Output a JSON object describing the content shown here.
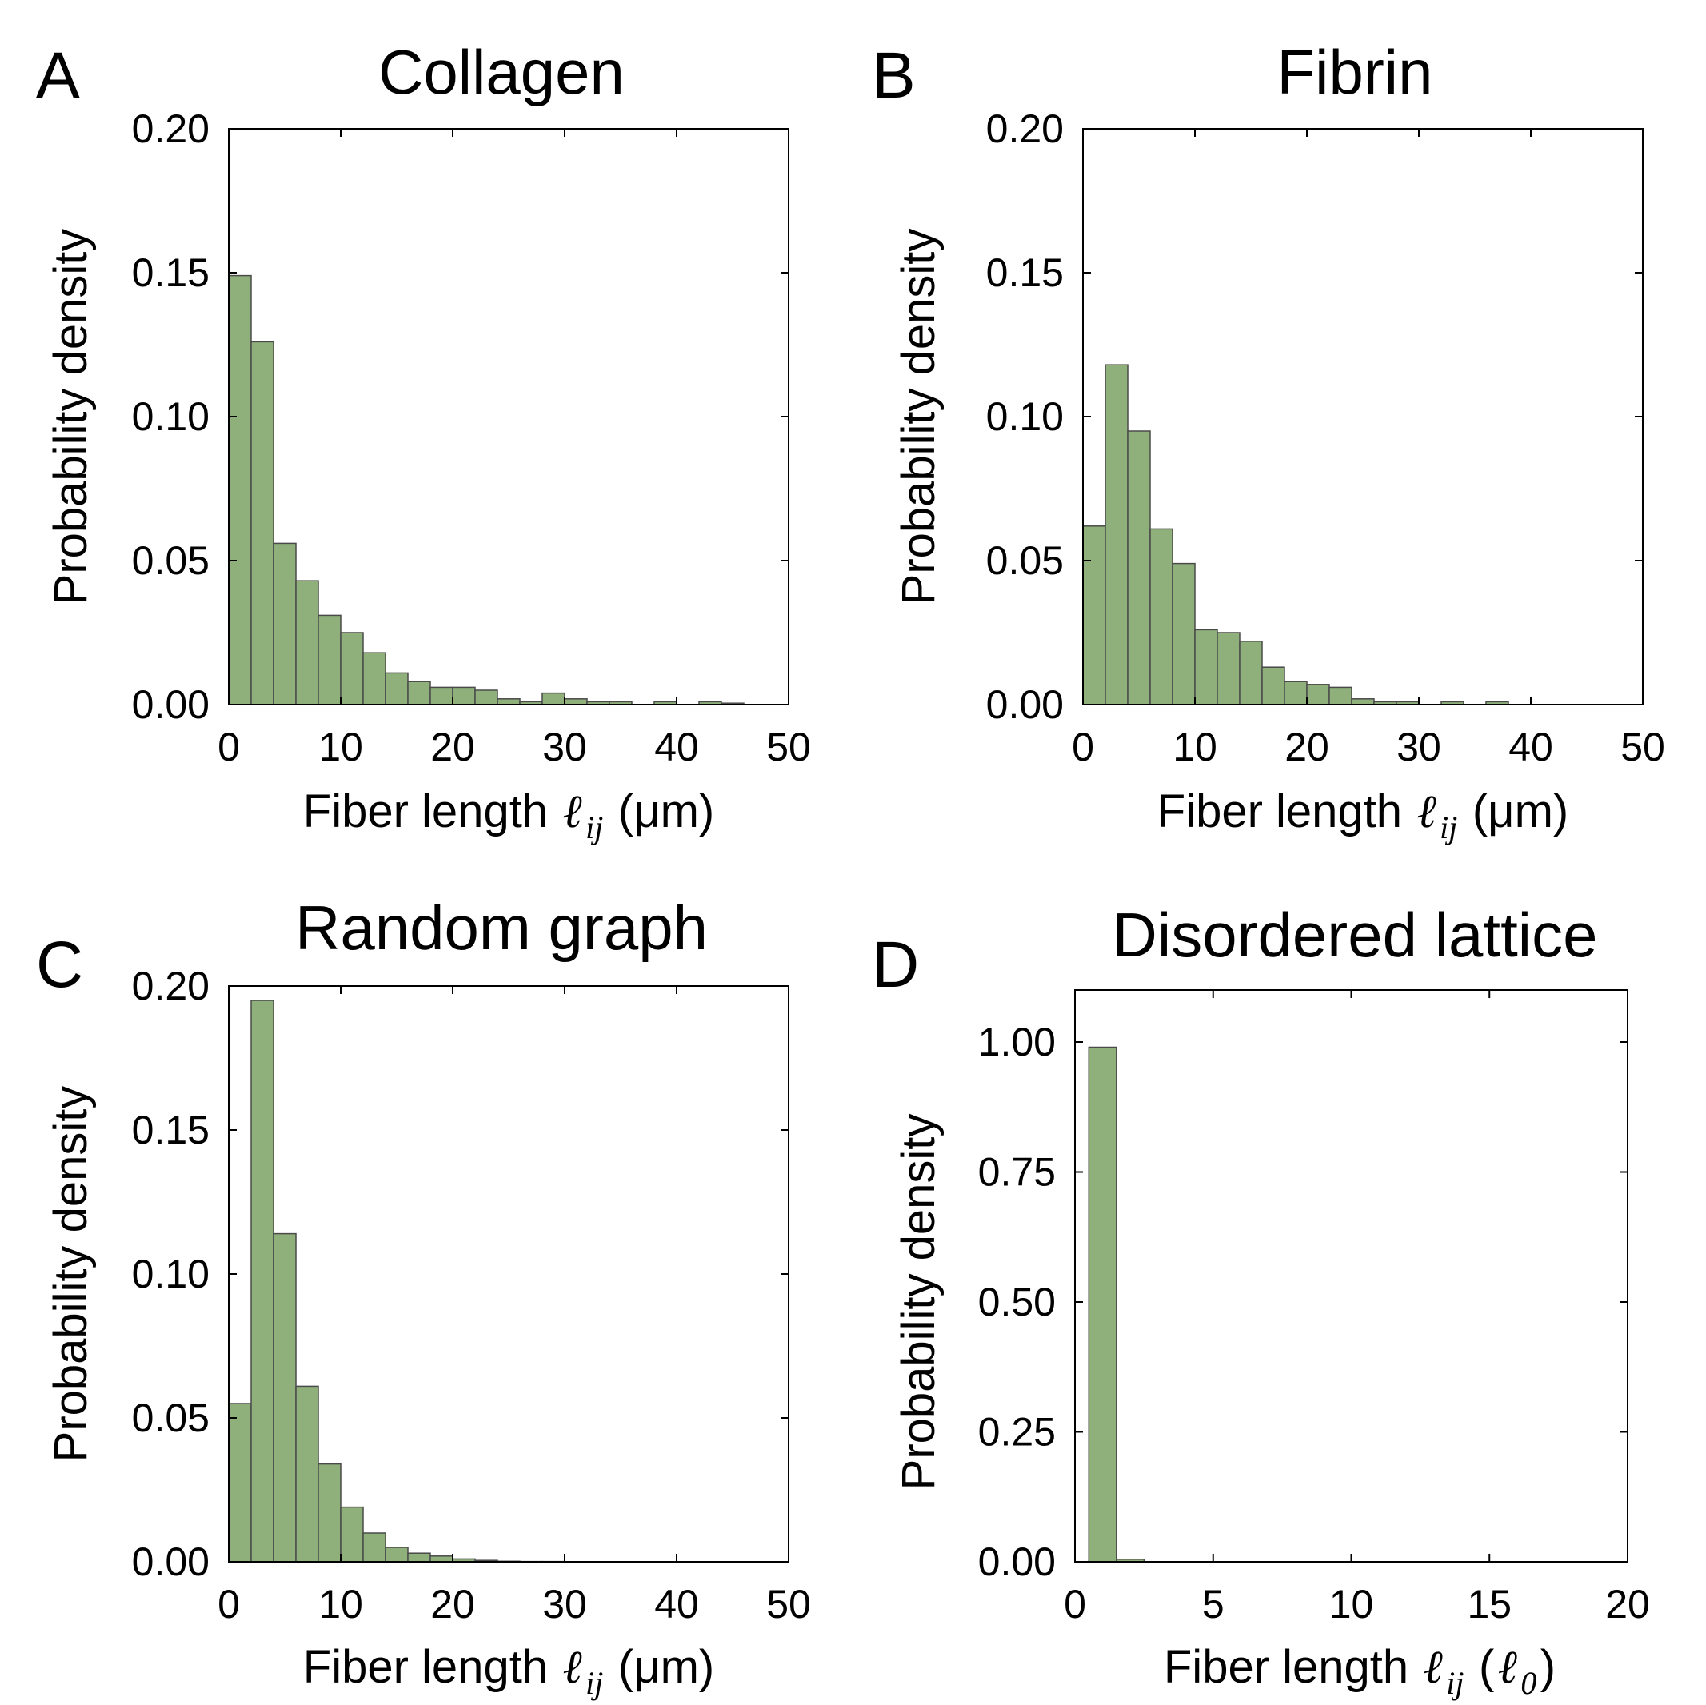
{
  "figure": {
    "bar_color": "#8fb07a",
    "bar_edge_color": "#4a4a4a"
  },
  "chart_data": [
    {
      "id": "A",
      "panel_letter": "A",
      "type": "bar",
      "title": "Collagen",
      "xlabel": "Fiber length",
      "xlabel_symbol": "ℓ",
      "xlabel_subscript": "ij",
      "xlabel_unit": "(μm)",
      "ylabel": "Probability density",
      "xlim": [
        0,
        50
      ],
      "ylim": [
        0,
        0.2
      ],
      "xticks": [
        0,
        10,
        20,
        30,
        40,
        50
      ],
      "xtick_labels": [
        "0",
        "10",
        "20",
        "30",
        "40",
        "50"
      ],
      "yticks": [
        0,
        0.05,
        0.1,
        0.15,
        0.2
      ],
      "ytick_labels": [
        "0.00",
        "0.05",
        "0.10",
        "0.15",
        "0.20"
      ],
      "bin_width": 2,
      "bins_start": [
        0,
        2,
        4,
        6,
        8,
        10,
        12,
        14,
        16,
        18,
        20,
        22,
        24,
        26,
        28,
        30,
        32,
        34,
        36,
        38,
        40,
        42,
        44,
        46,
        48
      ],
      "values": [
        0.149,
        0.126,
        0.056,
        0.043,
        0.031,
        0.025,
        0.018,
        0.011,
        0.008,
        0.006,
        0.006,
        0.005,
        0.002,
        0.001,
        0.004,
        0.002,
        0.001,
        0.001,
        0.0,
        0.001,
        0.0,
        0.001,
        0.0005,
        0.0,
        0.0
      ]
    },
    {
      "id": "B",
      "panel_letter": "B",
      "type": "bar",
      "title": "Fibrin",
      "xlabel": "Fiber length",
      "xlabel_symbol": "ℓ",
      "xlabel_subscript": "ij",
      "xlabel_unit": "(μm)",
      "ylabel": "Probability density",
      "xlim": [
        0,
        50
      ],
      "ylim": [
        0,
        0.2
      ],
      "xticks": [
        0,
        10,
        20,
        30,
        40,
        50
      ],
      "xtick_labels": [
        "0",
        "10",
        "20",
        "30",
        "40",
        "50"
      ],
      "yticks": [
        0,
        0.05,
        0.1,
        0.15,
        0.2
      ],
      "ytick_labels": [
        "0.00",
        "0.05",
        "0.10",
        "0.15",
        "0.20"
      ],
      "bin_width": 2,
      "bins_start": [
        0,
        2,
        4,
        6,
        8,
        10,
        12,
        14,
        16,
        18,
        20,
        22,
        24,
        26,
        28,
        30,
        32,
        34,
        36,
        38,
        40,
        42,
        44,
        46,
        48
      ],
      "values": [
        0.062,
        0.118,
        0.095,
        0.061,
        0.049,
        0.026,
        0.025,
        0.022,
        0.013,
        0.008,
        0.007,
        0.006,
        0.002,
        0.001,
        0.001,
        0.0,
        0.001,
        0.0,
        0.001,
        0.0,
        0.0,
        0.0,
        0.0,
        0.0,
        0.0
      ]
    },
    {
      "id": "C",
      "panel_letter": "C",
      "type": "bar",
      "title": "Random graph",
      "xlabel": "Fiber length",
      "xlabel_symbol": "ℓ",
      "xlabel_subscript": "ij",
      "xlabel_unit": "(μm)",
      "ylabel": "Probability density",
      "xlim": [
        0,
        50
      ],
      "ylim": [
        0,
        0.2
      ],
      "xticks": [
        0,
        10,
        20,
        30,
        40,
        50
      ],
      "xtick_labels": [
        "0",
        "10",
        "20",
        "30",
        "40",
        "50"
      ],
      "yticks": [
        0,
        0.05,
        0.1,
        0.15,
        0.2
      ],
      "ytick_labels": [
        "0.00",
        "0.05",
        "0.10",
        "0.15",
        "0.20"
      ],
      "bin_width": 2,
      "bins_start": [
        0,
        2,
        4,
        6,
        8,
        10,
        12,
        14,
        16,
        18,
        20,
        22,
        24,
        26,
        28,
        30,
        32,
        34,
        36,
        38,
        40,
        42,
        44,
        46,
        48
      ],
      "values": [
        0.055,
        0.195,
        0.114,
        0.061,
        0.034,
        0.019,
        0.01,
        0.005,
        0.003,
        0.002,
        0.001,
        0.0005,
        0.0002,
        0.0001,
        0.0001,
        0.0,
        0.0,
        0.0,
        0.0,
        0.0,
        0.0,
        0.0,
        0.0,
        0.0,
        0.0
      ]
    },
    {
      "id": "D",
      "panel_letter": "D",
      "type": "bar",
      "title": "Disordered lattice",
      "xlabel": "Fiber length",
      "xlabel_symbol": "ℓ",
      "xlabel_subscript": "ij",
      "xlabel_unit_open": "(",
      "xlabel_unit_symbol": "ℓ",
      "xlabel_unit_subscript": "0",
      "xlabel_unit_close": ")",
      "ylabel": "Probability density",
      "xlim": [
        0,
        20
      ],
      "ylim": [
        0,
        1.1
      ],
      "xticks": [
        0,
        5,
        10,
        15,
        20
      ],
      "xtick_labels": [
        "0",
        "5",
        "10",
        "15",
        "20"
      ],
      "yticks": [
        0,
        0.25,
        0.5,
        0.75,
        1.0
      ],
      "ytick_labels": [
        "0.00",
        "0.25",
        "0.50",
        "0.75",
        "1.00"
      ],
      "bin_width": 1,
      "bins_start": [
        0.5,
        1.5
      ],
      "values": [
        0.99,
        0.005
      ]
    }
  ]
}
